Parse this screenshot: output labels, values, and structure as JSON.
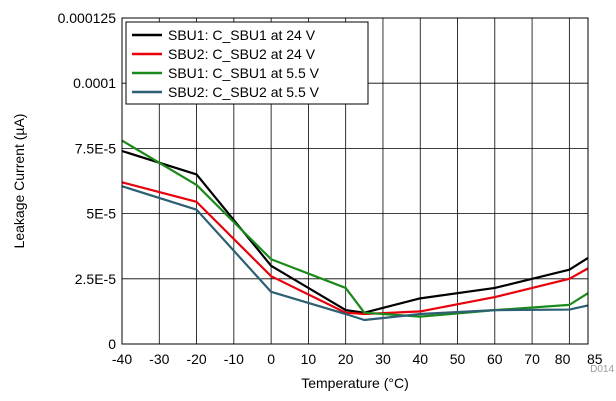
{
  "chart_data": {
    "type": "line",
    "xlabel": "Temperature (°C)",
    "ylabel": "Leakage Current (µA)",
    "figure_id": "D014",
    "xlim": [
      -40,
      85
    ],
    "ylim": [
      0,
      0.000125
    ],
    "grid": true,
    "legend_position": "top-left",
    "x_ticks": [
      -40,
      -30,
      -20,
      -10,
      0,
      10,
      20,
      30,
      40,
      50,
      60,
      70,
      80,
      85
    ],
    "x_tick_labels": [
      "-40",
      "-30",
      "-20",
      "-10",
      "0",
      "10",
      "20",
      "30",
      "40",
      "50",
      "60",
      "70",
      "80",
      "85"
    ],
    "y_ticks": [
      0,
      2.5e-05,
      5e-05,
      7.5e-05,
      0.0001,
      0.000125
    ],
    "y_tick_labels": [
      "0",
      "2.5E-5",
      "5E-5",
      "7.5E-5",
      "0.0001",
      "0.000125"
    ],
    "x": [
      -40,
      -20,
      0,
      20,
      25,
      40,
      60,
      80,
      85
    ],
    "series": [
      {
        "name": "SBU1: C_SBU1 at 24 V",
        "color": "#000000",
        "values": [
          7.4e-05,
          6.5e-05,
          3e-05,
          1.3e-05,
          1.2e-05,
          1.75e-05,
          2.15e-05,
          2.85e-05,
          3.3e-05
        ]
      },
      {
        "name": "SBU2: C_SBU2 at 24 V",
        "color": "#e8000b",
        "values": [
          6.2e-05,
          5.45e-05,
          2.6e-05,
          1.2e-05,
          1.15e-05,
          1.25e-05,
          1.8e-05,
          2.5e-05,
          2.9e-05
        ]
      },
      {
        "name": "SBU1: C_SBU1 at 5.5 V",
        "color": "#1a8a1a",
        "values": [
          7.8e-05,
          6.1e-05,
          3.25e-05,
          2.15e-05,
          1.2e-05,
          1.05e-05,
          1.3e-05,
          1.5e-05,
          1.95e-05
        ]
      },
      {
        "name": "SBU2: C_SBU2 at 5.5 V",
        "color": "#2d5f73",
        "values": [
          6.05e-05,
          5.15e-05,
          2e-05,
          1.15e-05,
          9.2e-06,
          1.15e-05,
          1.3e-05,
          1.32e-05,
          1.48e-05
        ]
      }
    ]
  }
}
